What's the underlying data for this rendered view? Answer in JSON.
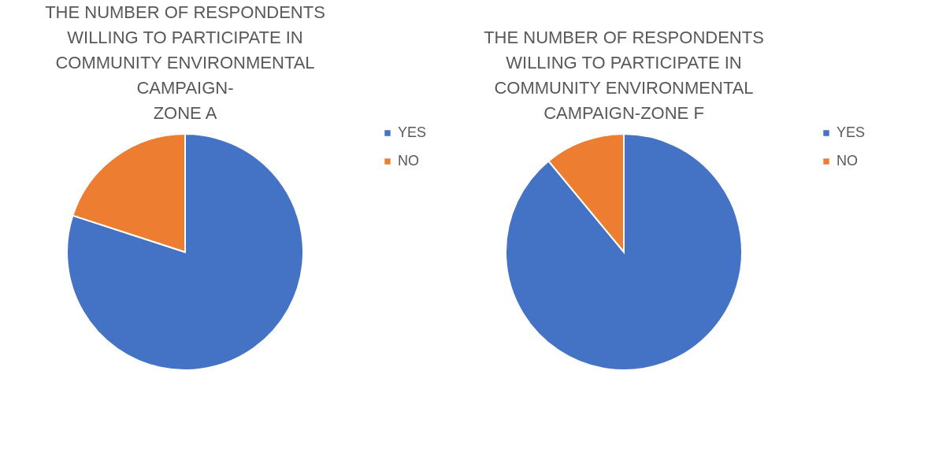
{
  "chart_data": [
    {
      "type": "pie",
      "title": "THE NUMBER OF RESPONDENTS\nWILLING TO PARTICIPATE IN\nCOMMUNITY ENVIRONMENTAL\nCAMPAIGN-\nZONE A",
      "categories": [
        "YES",
        "NO"
      ],
      "values": [
        80,
        20
      ],
      "colors": [
        "#4472c4",
        "#ed7d31"
      ],
      "legend": "right"
    },
    {
      "type": "pie",
      "title": "THE NUMBER OF RESPONDENTS\nWILLING TO PARTICIPATE IN\nCOMMUNITY ENVIRONMENTAL\nCAMPAIGN-ZONE F",
      "categories": [
        "YES",
        "NO"
      ],
      "values": [
        89,
        11
      ],
      "colors": [
        "#4472c4",
        "#ed7d31"
      ],
      "legend": "right"
    }
  ]
}
